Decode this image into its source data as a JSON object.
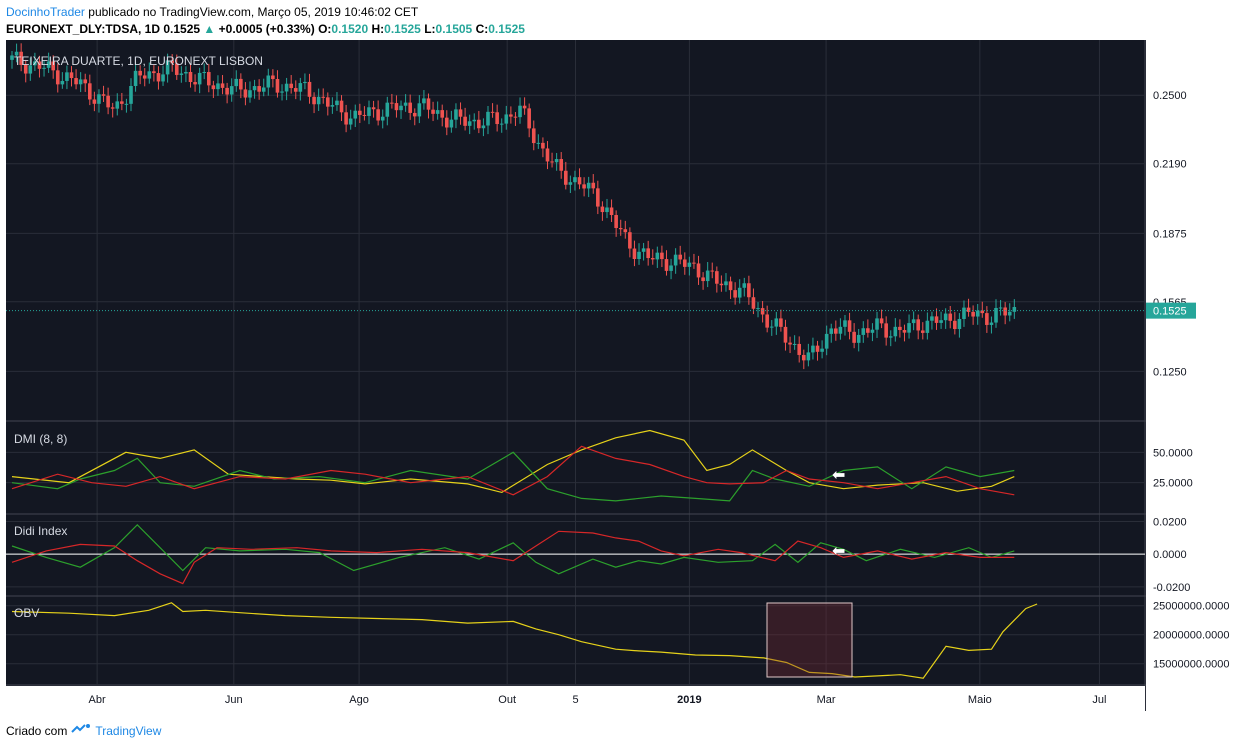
{
  "header": {
    "author": "DocinhoTrader",
    "published_text": "publicado no TradingView.com, Março 05, 2019 10:46:02 CET",
    "symbol": "EURONEXT_DLY:TDSA, 1D",
    "last": "0.1525",
    "change": "+0.0005 (+0.33%)",
    "o_label": "O:",
    "o_value": "0.1520",
    "h_label": "H:",
    "h_value": "0.1525",
    "l_label": "L:",
    "l_value": "0.1505",
    "c_label": "C:",
    "c_value": "0.1525"
  },
  "footer": {
    "created_with": "Criado com",
    "brand": "TradingView"
  },
  "colors": {
    "bg": "#131722",
    "up": "#26a69a",
    "down": "#ef5350",
    "yellow": "#e6d21a",
    "green": "#2ca02c",
    "red": "#d62728",
    "grid": "#2a2e39"
  },
  "chart_data": [
    {
      "type": "candlestick",
      "title": "TEIXEIRA DUARTE, 1D, EURONEXT LISBON",
      "y_ticks": [
        "0.2500",
        "0.2190",
        "0.1875",
        "0.1565",
        "0.1250"
      ],
      "ylim": [
        0.103,
        0.275
      ],
      "last_price_label": "0.1525",
      "series_close": [
        [
          0.0,
          0.266
        ],
        [
          0.03,
          0.262
        ],
        [
          0.06,
          0.255
        ],
        [
          0.09,
          0.243
        ],
        [
          0.11,
          0.258
        ],
        [
          0.14,
          0.262
        ],
        [
          0.17,
          0.256
        ],
        [
          0.2,
          0.252
        ],
        [
          0.23,
          0.255
        ],
        [
          0.26,
          0.252
        ],
        [
          0.28,
          0.245
        ],
        [
          0.3,
          0.24
        ],
        [
          0.33,
          0.244
        ],
        [
          0.36,
          0.245
        ],
        [
          0.38,
          0.24
        ],
        [
          0.4,
          0.238
        ],
        [
          0.43,
          0.239
        ],
        [
          0.445,
          0.244
        ],
        [
          0.46,
          0.23
        ],
        [
          0.48,
          0.215
        ],
        [
          0.5,
          0.21
        ],
        [
          0.52,
          0.2
        ],
        [
          0.54,
          0.183
        ],
        [
          0.56,
          0.176
        ],
        [
          0.58,
          0.175
        ],
        [
          0.6,
          0.172
        ],
        [
          0.62,
          0.165
        ],
        [
          0.64,
          0.162
        ],
        [
          0.66,
          0.15
        ],
        [
          0.68,
          0.14
        ],
        [
          0.7,
          0.13
        ],
        [
          0.72,
          0.145
        ],
        [
          0.74,
          0.142
        ],
        [
          0.76,
          0.145
        ],
        [
          0.78,
          0.143
        ],
        [
          0.8,
          0.147
        ],
        [
          0.82,
          0.148
        ],
        [
          0.84,
          0.151
        ],
        [
          0.86,
          0.15
        ],
        [
          0.88,
          0.1525
        ]
      ]
    },
    {
      "type": "line",
      "title": "DMI (8, 8)",
      "y_ticks": [
        "50.0000",
        "25.0000"
      ],
      "ylim": [
        0,
        75
      ],
      "series": [
        {
          "color": "yellow",
          "values": [
            [
              0.0,
              30
            ],
            [
              0.05,
              25
            ],
            [
              0.1,
              50
            ],
            [
              0.13,
              45
            ],
            [
              0.16,
              52
            ],
            [
              0.19,
              32
            ],
            [
              0.22,
              30
            ],
            [
              0.25,
              28
            ],
            [
              0.28,
              27
            ],
            [
              0.31,
              24
            ],
            [
              0.35,
              28
            ],
            [
              0.4,
              24
            ],
            [
              0.43,
              17
            ],
            [
              0.47,
              40
            ],
            [
              0.5,
              52
            ],
            [
              0.53,
              62
            ],
            [
              0.56,
              68
            ],
            [
              0.59,
              60
            ],
            [
              0.61,
              35
            ],
            [
              0.63,
              40
            ],
            [
              0.65,
              52
            ],
            [
              0.68,
              35
            ],
            [
              0.7,
              25
            ],
            [
              0.73,
              20
            ],
            [
              0.76,
              23
            ],
            [
              0.8,
              25
            ],
            [
              0.83,
              18
            ],
            [
              0.86,
              22
            ],
            [
              0.88,
              30
            ]
          ]
        },
        {
          "color": "green",
          "values": [
            [
              0.0,
              25
            ],
            [
              0.04,
              20
            ],
            [
              0.06,
              28
            ],
            [
              0.09,
              35
            ],
            [
              0.11,
              45
            ],
            [
              0.13,
              25
            ],
            [
              0.16,
              22
            ],
            [
              0.2,
              35
            ],
            [
              0.23,
              28
            ],
            [
              0.27,
              30
            ],
            [
              0.31,
              25
            ],
            [
              0.35,
              35
            ],
            [
              0.4,
              28
            ],
            [
              0.44,
              50
            ],
            [
              0.47,
              20
            ],
            [
              0.5,
              12
            ],
            [
              0.53,
              10
            ],
            [
              0.57,
              14
            ],
            [
              0.6,
              12
            ],
            [
              0.63,
              10
            ],
            [
              0.65,
              35
            ],
            [
              0.67,
              28
            ],
            [
              0.7,
              22
            ],
            [
              0.73,
              35
            ],
            [
              0.76,
              38
            ],
            [
              0.79,
              20
            ],
            [
              0.82,
              38
            ],
            [
              0.85,
              30
            ],
            [
              0.88,
              35
            ]
          ]
        },
        {
          "color": "red",
          "values": [
            [
              0.0,
              20
            ],
            [
              0.04,
              32
            ],
            [
              0.07,
              25
            ],
            [
              0.1,
              22
            ],
            [
              0.13,
              30
            ],
            [
              0.16,
              20
            ],
            [
              0.2,
              30
            ],
            [
              0.24,
              28
            ],
            [
              0.28,
              35
            ],
            [
              0.31,
              32
            ],
            [
              0.35,
              25
            ],
            [
              0.4,
              30
            ],
            [
              0.44,
              15
            ],
            [
              0.47,
              30
            ],
            [
              0.5,
              55
            ],
            [
              0.53,
              45
            ],
            [
              0.56,
              40
            ],
            [
              0.59,
              30
            ],
            [
              0.61,
              25
            ],
            [
              0.63,
              24
            ],
            [
              0.66,
              25
            ],
            [
              0.68,
              35
            ],
            [
              0.7,
              28
            ],
            [
              0.73,
              25
            ],
            [
              0.76,
              20
            ],
            [
              0.79,
              25
            ],
            [
              0.82,
              30
            ],
            [
              0.85,
              20
            ],
            [
              0.88,
              15
            ]
          ]
        }
      ]
    },
    {
      "type": "line",
      "title": "Didi Index",
      "y_ticks": [
        "0.0200",
        "0.0000",
        "-0.0200"
      ],
      "ylim": [
        -0.025,
        0.024
      ],
      "series": [
        {
          "color": "green",
          "values": [
            [
              0.0,
              0.005
            ],
            [
              0.03,
              -0.002
            ],
            [
              0.06,
              -0.008
            ],
            [
              0.09,
              0.004
            ],
            [
              0.11,
              0.018
            ],
            [
              0.13,
              0.004
            ],
            [
              0.15,
              -0.01
            ],
            [
              0.17,
              0.004
            ],
            [
              0.2,
              0.002
            ],
            [
              0.24,
              0.003
            ],
            [
              0.27,
              0.001
            ],
            [
              0.3,
              -0.01
            ],
            [
              0.34,
              -0.002
            ],
            [
              0.38,
              0.004
            ],
            [
              0.41,
              -0.003
            ],
            [
              0.44,
              0.007
            ],
            [
              0.46,
              -0.005
            ],
            [
              0.48,
              -0.012
            ],
            [
              0.51,
              -0.003
            ],
            [
              0.53,
              -0.008
            ],
            [
              0.55,
              -0.004
            ],
            [
              0.57,
              -0.006
            ],
            [
              0.59,
              -0.002
            ],
            [
              0.62,
              -0.005
            ],
            [
              0.65,
              -0.004
            ],
            [
              0.67,
              0.006
            ],
            [
              0.69,
              -0.005
            ],
            [
              0.71,
              0.007
            ],
            [
              0.73,
              0.003
            ],
            [
              0.75,
              -0.004
            ],
            [
              0.78,
              0.003
            ],
            [
              0.81,
              -0.002
            ],
            [
              0.84,
              0.004
            ],
            [
              0.86,
              -0.002
            ],
            [
              0.88,
              0.002
            ]
          ]
        },
        {
          "color": "red",
          "values": [
            [
              0.0,
              -0.005
            ],
            [
              0.03,
              0.002
            ],
            [
              0.06,
              0.006
            ],
            [
              0.09,
              0.005
            ],
            [
              0.11,
              -0.004
            ],
            [
              0.13,
              -0.012
            ],
            [
              0.15,
              -0.018
            ],
            [
              0.16,
              -0.005
            ],
            [
              0.18,
              0.004
            ],
            [
              0.21,
              0.003
            ],
            [
              0.25,
              0.004
            ],
            [
              0.28,
              0.002
            ],
            [
              0.32,
              0.001
            ],
            [
              0.36,
              0.003
            ],
            [
              0.4,
              0.001
            ],
            [
              0.44,
              -0.004
            ],
            [
              0.46,
              0.005
            ],
            [
              0.48,
              0.014
            ],
            [
              0.51,
              0.013
            ],
            [
              0.53,
              0.01
            ],
            [
              0.55,
              0.008
            ],
            [
              0.57,
              0.002
            ],
            [
              0.59,
              -0.001
            ],
            [
              0.62,
              0.003
            ],
            [
              0.64,
              0.001
            ],
            [
              0.67,
              -0.004
            ],
            [
              0.69,
              0.008
            ],
            [
              0.71,
              0.004
            ],
            [
              0.73,
              -0.002
            ],
            [
              0.76,
              0.002
            ],
            [
              0.79,
              -0.003
            ],
            [
              0.82,
              0.001
            ],
            [
              0.85,
              -0.002
            ],
            [
              0.88,
              -0.002
            ]
          ]
        }
      ],
      "zero_line": 0
    },
    {
      "type": "line",
      "title": "OBV",
      "y_ticks": [
        "25000000.0000",
        "20000000.0000",
        "15000000.0000"
      ],
      "ylim": [
        11500000,
        26500000
      ],
      "series": [
        {
          "color": "yellow",
          "values": [
            [
              0.0,
              24000000
            ],
            [
              0.05,
              23700000
            ],
            [
              0.09,
              23300000
            ],
            [
              0.12,
              24200000
            ],
            [
              0.14,
              25500000
            ],
            [
              0.15,
              24000000
            ],
            [
              0.17,
              24200000
            ],
            [
              0.2,
              23800000
            ],
            [
              0.24,
              23300000
            ],
            [
              0.28,
              23000000
            ],
            [
              0.32,
              22800000
            ],
            [
              0.36,
              22600000
            ],
            [
              0.4,
              22000000
            ],
            [
              0.44,
              22300000
            ],
            [
              0.46,
              21000000
            ],
            [
              0.48,
              20000000
            ],
            [
              0.5,
              18800000
            ],
            [
              0.53,
              17500000
            ],
            [
              0.55,
              17200000
            ],
            [
              0.57,
              17000000
            ],
            [
              0.6,
              16500000
            ],
            [
              0.63,
              16400000
            ],
            [
              0.66,
              16000000
            ],
            [
              0.68,
              15200000
            ],
            [
              0.7,
              13500000
            ],
            [
              0.72,
              13300000
            ],
            [
              0.74,
              12700000
            ],
            [
              0.76,
              12900000
            ],
            [
              0.78,
              13100000
            ],
            [
              0.8,
              12500000
            ],
            [
              0.82,
              18000000
            ],
            [
              0.84,
              17300000
            ],
            [
              0.86,
              17500000
            ],
            [
              0.87,
              20500000
            ],
            [
              0.88,
              22500000
            ],
            [
              0.89,
              24500000
            ],
            [
              0.9,
              25300000
            ]
          ]
        }
      ]
    }
  ],
  "x_axis": {
    "labels": [
      "Abr",
      "Jun",
      "Ago",
      "Out",
      "5",
      "2019",
      "Mar",
      "Maio",
      "Jul"
    ]
  }
}
